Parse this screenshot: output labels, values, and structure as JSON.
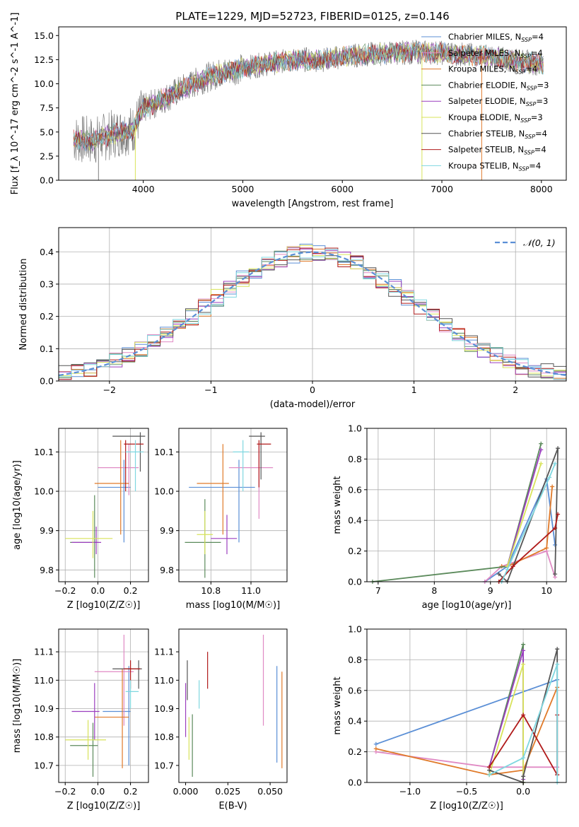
{
  "figure": {
    "title": "PLATE=1229, MJD=52723, FIBERID=0125, z=0.146"
  },
  "colors": {
    "gray": "#7f7f7f",
    "grid": "#b0b0b0",
    "gauss": "#5b8fd6",
    "Chabrier MILES": "#5b8fd6",
    "Salpeter MILES": "#e08ac4",
    "Kroupa MILES": "#e07a2a",
    "Chabrier ELODIE": "#5b8a5b",
    "Salpeter ELODIE": "#9b3fbf",
    "Kroupa ELODIE": "#d8e35a",
    "Chabrier STELIB": "#555555",
    "Salpeter STELIB": "#b01a1a",
    "Kroupa STELIB": "#7fd7e0"
  },
  "chart_data": [
    {
      "id": "spectrum",
      "type": "line",
      "xlabel": "wavelength [Angstrom, rest frame]",
      "ylabel": "Flux [f_λ 10^-17 erg cm^-2 s^-1 A^-1]",
      "xlim": [
        3150,
        8250
      ],
      "ylim": [
        0,
        15.9
      ],
      "xticks": [
        4000,
        5000,
        6000,
        7000,
        8000
      ],
      "yticks": [
        0.0,
        2.5,
        5.0,
        7.5,
        10.0,
        12.5,
        15.0
      ],
      "legend_position": "top-right",
      "legend": [
        {
          "label": "Chabrier MILES, N",
          "sub": "SSP",
          "suffix": "=4"
        },
        {
          "label": "Salpeter MILES, N",
          "sub": "SSP",
          "suffix": "=4"
        },
        {
          "label": "Kroupa MILES, N",
          "sub": "SSP",
          "suffix": "=4"
        },
        {
          "label": "Chabrier ELODIE, N",
          "sub": "SSP",
          "suffix": "=3"
        },
        {
          "label": "Salpeter ELODIE, N",
          "sub": "SSP",
          "suffix": "=3"
        },
        {
          "label": "Kroupa ELODIE, N",
          "sub": "SSP",
          "suffix": "=3"
        },
        {
          "label": "Chabrier STELIB, N",
          "sub": "SSP",
          "suffix": "=4"
        },
        {
          "label": "Salpeter STELIB, N",
          "sub": "SSP",
          "suffix": "=4"
        },
        {
          "label": "Kroupa STELIB, N",
          "sub": "SSP",
          "suffix": "=4"
        }
      ],
      "model_trend": {
        "x": [
          3300,
          3500,
          3700,
          3900,
          4000,
          4200,
          4400,
          4600,
          4800,
          5000,
          5200,
          5400,
          5600,
          5800,
          6000,
          6200,
          6500,
          6800,
          7000,
          7400,
          7800,
          8000
        ],
        "y": [
          4.3,
          4.1,
          4.8,
          5.3,
          7.4,
          8.4,
          9.5,
          10.5,
          11.2,
          11.6,
          12.0,
          12.3,
          12.5,
          12.5,
          12.8,
          13.0,
          13.2,
          13.3,
          13.2,
          12.9,
          12.3,
          12.1
        ]
      }
    },
    {
      "id": "residuals",
      "type": "line",
      "xlabel": "(data-model)/error",
      "ylabel": "Normed distribution",
      "xlim": [
        -2.5,
        2.5
      ],
      "ylim": [
        0,
        0.475
      ],
      "xticks": [
        -2,
        -1,
        0,
        1,
        2
      ],
      "yticks": [
        0.0,
        0.1,
        0.2,
        0.3,
        0.4
      ],
      "legend_position": "top-right",
      "legend_gauss": "𝒩(0, 1)",
      "bins": 40,
      "grid": true
    },
    {
      "id": "age_vs_Z",
      "type": "scatter",
      "xlabel": "Z [log10(Z/Z☉)]",
      "ylabel": "age [log10(age/yr)]",
      "xlim": [
        -0.24,
        0.31
      ],
      "ylim": [
        9.77,
        10.16
      ],
      "xticks": [
        -0.2,
        0.0,
        0.2
      ],
      "yticks": [
        9.8,
        9.9,
        10.0,
        10.1
      ],
      "grid": true,
      "points": [
        {
          "model": "Chabrier MILES",
          "x": 0.16,
          "y": 10.01,
          "x0": 0.0,
          "x1": 0.2,
          "y0": 9.87,
          "y1": 10.08
        },
        {
          "model": "Salpeter MILES",
          "x": 0.19,
          "y": 10.06,
          "x0": -0.0,
          "x1": 0.25,
          "y0": 9.99,
          "y1": 10.12
        },
        {
          "model": "Kroupa MILES",
          "x": 0.14,
          "y": 10.02,
          "x0": -0.02,
          "x1": 0.19,
          "y0": 9.89,
          "y1": 10.13
        },
        {
          "model": "Chabrier ELODIE",
          "x": -0.02,
          "y": 9.87,
          "x0": -0.17,
          "x1": 0.0,
          "y0": 9.78,
          "y1": 9.99
        },
        {
          "model": "Salpeter ELODIE",
          "x": -0.01,
          "y": 9.87,
          "x0": -0.16,
          "x1": 0.02,
          "y0": 9.84,
          "y1": 9.91
        },
        {
          "model": "Kroupa ELODIE",
          "x": -0.03,
          "y": 9.88,
          "x0": -0.2,
          "x1": 0.09,
          "y0": 9.83,
          "y1": 9.95
        },
        {
          "model": "Chabrier STELIB",
          "x": 0.26,
          "y": 10.14,
          "x0": 0.09,
          "x1": 0.29,
          "y0": 10.05,
          "y1": 10.15
        },
        {
          "model": "Salpeter STELIB",
          "x": 0.17,
          "y": 10.12,
          "x0": 0.16,
          "x1": 0.28,
          "y0": 10.0,
          "y1": 10.13
        },
        {
          "model": "Kroupa STELIB",
          "x": 0.23,
          "y": 10.1,
          "x0": 0.17,
          "x1": 0.28,
          "y0": 10.0,
          "y1": 10.13
        }
      ]
    },
    {
      "id": "age_vs_mass",
      "type": "scatter",
      "xlabel": "mass [log10(M/M☉)]",
      "ylabel": "",
      "xlim": [
        10.64,
        11.18
      ],
      "ylim": [
        9.77,
        10.16
      ],
      "xticks": [
        10.8,
        11.0
      ],
      "yticks": [
        9.8,
        9.9,
        10.0,
        10.1
      ],
      "grid": true,
      "points": [
        {
          "model": "Chabrier MILES",
          "x": 10.94,
          "y": 10.01,
          "x0": 10.69,
          "x1": 11.02,
          "y0": 9.87,
          "y1": 10.08
        },
        {
          "model": "Salpeter MILES",
          "x": 11.04,
          "y": 10.06,
          "x0": 10.89,
          "x1": 11.11,
          "y0": 9.93,
          "y1": 10.12
        },
        {
          "model": "Kroupa MILES",
          "x": 10.86,
          "y": 10.02,
          "x0": 10.73,
          "x1": 10.89,
          "y0": 9.89,
          "y1": 10.12
        },
        {
          "model": "Chabrier ELODIE",
          "x": 10.77,
          "y": 9.87,
          "x0": 10.67,
          "x1": 10.85,
          "y0": 9.78,
          "y1": 9.98
        },
        {
          "model": "Salpeter ELODIE",
          "x": 10.88,
          "y": 9.88,
          "x0": 10.8,
          "x1": 10.93,
          "y0": 9.84,
          "y1": 9.94
        },
        {
          "model": "Kroupa ELODIE",
          "x": 10.77,
          "y": 9.89,
          "x0": 10.73,
          "x1": 10.81,
          "y0": 9.84,
          "y1": 9.95
        },
        {
          "model": "Chabrier STELIB",
          "x": 11.05,
          "y": 10.14,
          "x0": 10.99,
          "x1": 11.07,
          "y0": 10.03,
          "y1": 10.15
        },
        {
          "model": "Salpeter STELIB",
          "x": 11.04,
          "y": 10.12,
          "x0": 11.03,
          "x1": 11.1,
          "y0": 10.01,
          "y1": 10.13
        },
        {
          "model": "Kroupa STELIB",
          "x": 10.96,
          "y": 10.1,
          "x0": 10.91,
          "x1": 10.99,
          "y0": 10.0,
          "y1": 10.13
        }
      ]
    },
    {
      "id": "mass_vs_Z",
      "type": "scatter",
      "xlabel": "Z [log10(Z/Z☉)]",
      "ylabel": "mass [log10(M/M☉)]",
      "xlim": [
        -0.24,
        0.31
      ],
      "ylim": [
        10.64,
        11.18
      ],
      "xticks": [
        -0.2,
        0.0,
        0.2
      ],
      "yticks": [
        10.7,
        10.8,
        10.9,
        11.0,
        11.1
      ],
      "grid": true,
      "points": [
        {
          "model": "Chabrier MILES",
          "x": 0.19,
          "y": 10.89,
          "x0": 0.03,
          "x1": 0.2,
          "y0": 10.7,
          "y1": 11.05
        },
        {
          "model": "Salpeter MILES",
          "x": 0.16,
          "y": 11.03,
          "x0": -0.02,
          "x1": 0.22,
          "y0": 10.84,
          "y1": 11.16
        },
        {
          "model": "Kroupa MILES",
          "x": 0.15,
          "y": 10.87,
          "x0": -0.02,
          "x1": 0.19,
          "y0": 10.69,
          "y1": 11.04
        },
        {
          "model": "Chabrier ELODIE",
          "x": -0.03,
          "y": 10.77,
          "x0": -0.17,
          "x1": 0.0,
          "y0": 10.66,
          "y1": 10.85
        },
        {
          "model": "Salpeter ELODIE",
          "x": -0.02,
          "y": 10.89,
          "x0": -0.16,
          "x1": 0.01,
          "y0": 10.79,
          "y1": 10.99
        },
        {
          "model": "Kroupa ELODIE",
          "x": -0.06,
          "y": 10.79,
          "x0": -0.2,
          "x1": 0.05,
          "y0": 10.72,
          "y1": 10.86
        },
        {
          "model": "Chabrier STELIB",
          "x": 0.25,
          "y": 11.04,
          "x0": 0.09,
          "x1": 0.27,
          "y0": 10.97,
          "y1": 11.07
        },
        {
          "model": "Salpeter STELIB",
          "x": 0.2,
          "y": 11.04,
          "x0": 0.16,
          "x1": 0.26,
          "y0": 10.97,
          "y1": 11.07
        },
        {
          "model": "Kroupa STELIB",
          "x": 0.2,
          "y": 10.96,
          "x0": 0.17,
          "x1": 0.25,
          "y0": 10.9,
          "y1": 11.0
        }
      ]
    },
    {
      "id": "mass_vs_ebv",
      "type": "scatter",
      "xlabel": "E(B-V)",
      "ylabel": "",
      "xlim": [
        -0.004,
        0.06
      ],
      "ylim": [
        10.64,
        11.18
      ],
      "xticks": [
        0.0,
        0.025,
        0.05
      ],
      "yticks": [
        10.7,
        10.8,
        10.9,
        11.0,
        11.1
      ],
      "grid": false,
      "bars": [
        {
          "model": "Chabrier MILES",
          "x": 0.054,
          "y0": 10.71,
          "y1": 11.05
        },
        {
          "model": "Salpeter MILES",
          "x": 0.046,
          "y0": 10.84,
          "y1": 11.16
        },
        {
          "model": "Kroupa MILES",
          "x": 0.057,
          "y0": 10.69,
          "y1": 11.03
        },
        {
          "model": "Chabrier ELODIE",
          "x": 0.004,
          "y0": 10.66,
          "y1": 10.88
        },
        {
          "model": "Salpeter ELODIE",
          "x": 0.0,
          "y0": 10.8,
          "y1": 10.99
        },
        {
          "model": "Kroupa ELODIE",
          "x": 0.002,
          "y0": 10.72,
          "y1": 10.87
        },
        {
          "model": "Chabrier STELIB",
          "x": 0.001,
          "y0": 10.93,
          "y1": 11.07
        },
        {
          "model": "Salpeter STELIB",
          "x": 0.013,
          "y0": 10.97,
          "y1": 11.1
        },
        {
          "model": "Kroupa STELIB",
          "x": 0.008,
          "y0": 10.9,
          "y1": 11.0
        }
      ]
    },
    {
      "id": "weight_vs_age",
      "type": "line",
      "xlabel": "age [log10(age/yr)]",
      "ylabel": "mass weight",
      "xlim": [
        6.8,
        10.35
      ],
      "ylim": [
        0,
        1.0
      ],
      "xticks": [
        7,
        8,
        9,
        10
      ],
      "yticks": [
        0.0,
        0.2,
        0.4,
        0.6,
        0.8,
        1.0
      ],
      "grid": true,
      "series": [
        {
          "model": "Chabrier MILES",
          "x": [
            8.9,
            9.3,
            10.0,
            10.15
          ],
          "y": [
            0.0,
            0.1,
            0.67,
            0.24
          ]
        },
        {
          "model": "Salpeter MILES",
          "x": [
            8.9,
            9.2,
            10.0,
            10.15
          ],
          "y": [
            0.0,
            0.1,
            0.2,
            0.03
          ]
        },
        {
          "model": "Kroupa MILES",
          "x": [
            9.2,
            9.3,
            10.0,
            10.1
          ],
          "y": [
            0.1,
            0.1,
            0.22,
            0.62
          ]
        },
        {
          "model": "Chabrier ELODIE",
          "x": [
            6.9,
            9.3,
            9.9
          ],
          "y": [
            0.0,
            0.1,
            0.9
          ]
        },
        {
          "model": "Salpeter ELODIE",
          "x": [
            9.3,
            9.9
          ],
          "y": [
            0.1,
            0.86
          ]
        },
        {
          "model": "Kroupa ELODIE",
          "x": [
            9.3,
            9.9
          ],
          "y": [
            0.1,
            0.77
          ]
        },
        {
          "model": "Chabrier STELIB",
          "x": [
            9.15,
            9.3,
            10.2,
            10.15
          ],
          "y": [
            0.05,
            0.0,
            0.87,
            0.05
          ]
        },
        {
          "model": "Salpeter STELIB",
          "x": [
            9.15,
            9.4,
            10.15,
            10.2
          ],
          "y": [
            0.0,
            0.1,
            0.35,
            0.44
          ]
        },
        {
          "model": "Kroupa STELIB",
          "x": [
            9.2,
            9.3,
            10.05,
            10.15
          ],
          "y": [
            0.0,
            0.08,
            0.68,
            0.77
          ]
        }
      ]
    },
    {
      "id": "weight_vs_Z",
      "type": "line",
      "xlabel": "Z [log10(Z/Z☉)]",
      "ylabel": "mass weight",
      "xlim": [
        -1.38,
        0.38
      ],
      "ylim": [
        0,
        1.0
      ],
      "xticks": [
        -1.0,
        -0.5,
        0.0
      ],
      "yticks": [
        0.0,
        0.2,
        0.4,
        0.6,
        0.8,
        1.0
      ],
      "grid": true,
      "series": [
        {
          "model": "Chabrier MILES",
          "x": [
            -1.3,
            0.3
          ],
          "y": [
            0.25,
            0.67
          ]
        },
        {
          "model": "Salpeter MILES",
          "x": [
            -1.3,
            -0.3,
            0.3
          ],
          "y": [
            0.2,
            0.1,
            0.1
          ]
        },
        {
          "model": "Kroupa MILES",
          "x": [
            -1.3,
            -0.3,
            0.0,
            0.3
          ],
          "y": [
            0.22,
            0.05,
            0.08,
            0.62
          ]
        },
        {
          "model": "Chabrier ELODIE",
          "x": [
            -0.3,
            0.0,
            0.0
          ],
          "y": [
            0.1,
            0.9,
            0.0
          ]
        },
        {
          "model": "Salpeter ELODIE",
          "x": [
            -0.3,
            0.0,
            0.0
          ],
          "y": [
            0.1,
            0.86,
            0.02
          ]
        },
        {
          "model": "Kroupa ELODIE",
          "x": [
            -0.3,
            0.0,
            0.0
          ],
          "y": [
            0.05,
            0.77,
            0.0
          ]
        },
        {
          "model": "Chabrier STELIB",
          "x": [
            -0.3,
            0.0,
            0.0,
            0.3,
            0.3
          ],
          "y": [
            0.08,
            0.0,
            0.04,
            0.87,
            0.05
          ]
        },
        {
          "model": "Salpeter STELIB",
          "x": [
            -0.3,
            0.0,
            0.3,
            0.3
          ],
          "y": [
            0.1,
            0.44,
            0.05,
            0.44
          ]
        },
        {
          "model": "Kroupa STELIB",
          "x": [
            -0.3,
            0.0,
            0.3,
            0.3
          ],
          "y": [
            0.05,
            0.16,
            0.77,
            0.0
          ]
        }
      ]
    }
  ]
}
